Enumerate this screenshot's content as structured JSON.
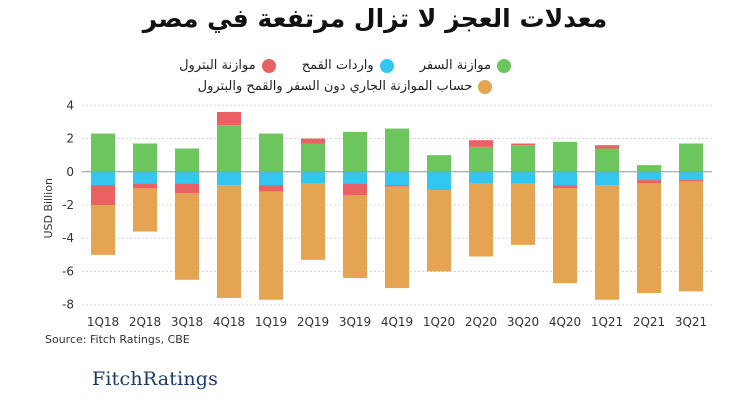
{
  "title": "معدلات العجز لا تزال مرتفعة في مصر",
  "source": "Source: Fitch Ratings, CBE",
  "logo": {
    "part1": "Fitch",
    "part2": "Ratings"
  },
  "colors": {
    "travel": "#6cc55d",
    "wheat": "#33c6f0",
    "petroleum": "#e96162",
    "current": "#e5a452",
    "axis": "#555555",
    "grid": "#d8d8d8"
  },
  "chart_data": {
    "type": "bar",
    "stacked": true,
    "ylabel": "USD Billion",
    "ylim": [
      -8.5,
      4.5
    ],
    "yticks": [
      4,
      2,
      0,
      -2,
      -4,
      -6,
      -8
    ],
    "categories": [
      "1Q18",
      "2Q18",
      "3Q18",
      "4Q18",
      "1Q19",
      "2Q19",
      "3Q19",
      "4Q19",
      "1Q20",
      "2Q20",
      "3Q20",
      "4Q20",
      "1Q21",
      "2Q21",
      "3Q21"
    ],
    "series": [
      {
        "name": "موازنة السفر",
        "color": "#6cc55d",
        "values": [
          2.3,
          1.7,
          1.4,
          2.8,
          2.3,
          1.7,
          2.4,
          2.6,
          1.0,
          1.5,
          1.6,
          1.8,
          1.4,
          0.4,
          1.7
        ]
      },
      {
        "name": "موازنة البترول",
        "color": "#e96162",
        "values": [
          0.0,
          0.0,
          0.0,
          0.8,
          0.0,
          0.3,
          0.0,
          0.0,
          0.0,
          0.4,
          0.1,
          0.0,
          0.2,
          0.0,
          0.0
        ]
      },
      {
        "name": "واردات القمح",
        "color": "#33c6f0",
        "values": [
          -0.8,
          -0.7,
          -0.7,
          -0.8,
          -0.8,
          -0.7,
          -0.7,
          -0.8,
          -1.1,
          -0.7,
          -0.7,
          -0.8,
          -0.8,
          -0.5,
          -0.5
        ]
      },
      {
        "name": "موازنة البترول",
        "color": "#e96162",
        "values": [
          -1.2,
          -0.3,
          -0.6,
          0.0,
          -0.4,
          0.0,
          -0.7,
          -0.1,
          0.0,
          0.0,
          0.0,
          -0.2,
          0.0,
          -0.2,
          -0.1
        ]
      },
      {
        "name": "حساب الموازنة الجاري دون السفر والقمح والبترول",
        "color": "#e5a452",
        "values": [
          -3.0,
          -2.6,
          -5.2,
          -6.8,
          -6.5,
          -4.6,
          -5.0,
          -6.1,
          -4.9,
          -4.4,
          -3.7,
          -5.7,
          -6.9,
          -6.6,
          -6.6
        ]
      }
    ],
    "legend": [
      {
        "label": "موازنة السفر",
        "color": "#6cc55d"
      },
      {
        "label": "واردات القمح",
        "color": "#33c6f0"
      },
      {
        "label": "موازنة البترول",
        "color": "#e96162"
      },
      {
        "label": "حساب الموازنة الجاري دون السفر والقمح والبترول",
        "color": "#e5a452"
      }
    ]
  }
}
